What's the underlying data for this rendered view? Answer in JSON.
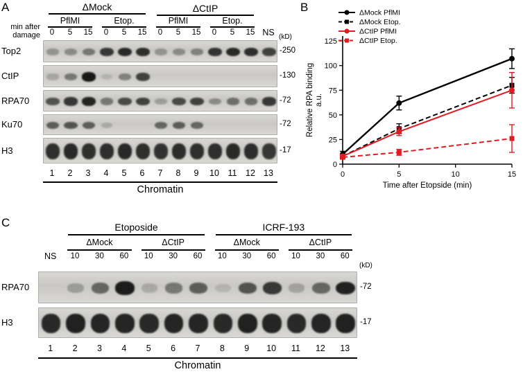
{
  "accent_colors": {
    "black": "#000000",
    "red": "#e11b22"
  },
  "panelA": {
    "label": "A",
    "row_axis_label_lines": [
      "min after",
      "damage"
    ],
    "kd_label": "(kD)",
    "groups": [
      {
        "label": "ΔMock",
        "from": 0,
        "to": 5
      },
      {
        "label": "ΔCtIP",
        "from": 6,
        "to": 11
      }
    ],
    "subgroups": [
      {
        "label": "PflMI",
        "from": 0,
        "to": 2
      },
      {
        "label": "Etop.",
        "from": 3,
        "to": 5
      },
      {
        "label": "PflMI",
        "from": 6,
        "to": 8
      },
      {
        "label": "Etop.",
        "from": 9,
        "to": 11
      }
    ],
    "lane_times": [
      "0",
      "5",
      "15",
      "0",
      "5",
      "15",
      "0",
      "5",
      "15",
      "0",
      "5",
      "15"
    ],
    "ns_label": "NS",
    "rows": [
      {
        "name": "Top2",
        "marker": "-250",
        "bands": [
          0.3,
          0.35,
          0.45,
          0.8,
          0.88,
          0.85,
          0.3,
          0.35,
          0.4,
          0.82,
          0.88,
          0.85,
          0.75
        ]
      },
      {
        "name": "CtIP",
        "marker": "-130",
        "bands": [
          0.2,
          0.45,
          0.97,
          0.12,
          0.4,
          0.75,
          0.04,
          0.04,
          0.03,
          0.03,
          0.04,
          0.03,
          0.03
        ]
      },
      {
        "name": "RPA70",
        "marker": "-72",
        "bands": [
          0.65,
          0.8,
          0.9,
          0.45,
          0.7,
          0.75,
          0.25,
          0.7,
          0.75,
          0.35,
          0.5,
          0.5,
          0.8
        ]
      },
      {
        "name": "Ku70",
        "marker": "-72",
        "bands": [
          0.6,
          0.65,
          0.6,
          0.18,
          0.04,
          0.03,
          0.55,
          0.6,
          0.55,
          0.03,
          0.03,
          0.03,
          0.03
        ]
      },
      {
        "name": "H3",
        "marker": "-17",
        "bands": [
          0.85,
          0.88,
          0.85,
          0.85,
          0.88,
          0.85,
          0.83,
          0.86,
          0.85,
          0.85,
          0.88,
          0.86,
          0.8
        ]
      }
    ],
    "lane_numbers": [
      "1",
      "2",
      "3",
      "4",
      "5",
      "6",
      "7",
      "8",
      "9",
      "10",
      "11",
      "12",
      "13"
    ],
    "bottom_label": "Chromatin"
  },
  "panelB": {
    "label": "B"
  },
  "chart_data": {
    "type": "line",
    "x": [
      0,
      5,
      15
    ],
    "series": [
      {
        "name": "ΔMock PflMI",
        "color": "#000000",
        "style": "solid",
        "marker": "circle",
        "values": [
          10,
          62,
          107
        ],
        "errors": [
          3,
          7,
          10
        ]
      },
      {
        "name": "ΔMock Etop.",
        "color": "#000000",
        "style": "dashed",
        "marker": "square",
        "values": [
          8,
          36,
          80
        ],
        "errors": [
          2,
          5,
          8
        ]
      },
      {
        "name": "ΔCtIP PflMI",
        "color": "#e11b22",
        "style": "solid",
        "marker": "circle",
        "values": [
          8,
          33,
          75
        ],
        "errors": [
          2,
          4,
          18
        ]
      },
      {
        "name": "ΔCtIP Etop.",
        "color": "#e11b22",
        "style": "dashed",
        "marker": "square",
        "values": [
          7,
          12,
          26
        ],
        "errors": [
          2,
          3,
          14
        ]
      }
    ],
    "title": "",
    "xlabel": "Time after Etopside (min)",
    "ylabel": "Relative RPA binding",
    "ylabel2": "a.u.",
    "xticks": [
      0,
      5,
      10,
      15
    ],
    "yticks": [
      0,
      25,
      50,
      75,
      100,
      125
    ],
    "xlim": [
      0,
      15
    ],
    "ylim": [
      0,
      130
    ],
    "grid": false,
    "legend_position": "top-left"
  },
  "panelC": {
    "label": "C",
    "kd_label": "(kD)",
    "groups": [
      {
        "label": "Etoposide",
        "from": 1,
        "to": 6
      },
      {
        "label": "ICRF-193",
        "from": 7,
        "to": 12
      }
    ],
    "subgroups": [
      {
        "label": "ΔMock",
        "from": 1,
        "to": 3
      },
      {
        "label": "ΔCtIP",
        "from": 4,
        "to": 6
      },
      {
        "label": "ΔMock",
        "from": 7,
        "to": 9
      },
      {
        "label": "ΔCtIP",
        "from": 10,
        "to": 12
      }
    ],
    "ns_label": "NS",
    "lane_times": [
      "10",
      "30",
      "60",
      "10",
      "30",
      "60",
      "10",
      "30",
      "60",
      "10",
      "30",
      "60"
    ],
    "rows": [
      {
        "name": "RPA70",
        "marker": "-72",
        "bands": [
          0.04,
          0.25,
          0.55,
          0.95,
          0.18,
          0.45,
          0.6,
          0.12,
          0.65,
          0.8,
          0.22,
          0.55,
          0.92
        ]
      },
      {
        "name": "H3",
        "marker": "-17",
        "bands": [
          0.88,
          0.92,
          0.9,
          0.9,
          0.88,
          0.9,
          0.9,
          0.88,
          0.92,
          0.9,
          0.88,
          0.9,
          0.92
        ]
      }
    ],
    "lane_numbers": [
      "1",
      "2",
      "3",
      "4",
      "5",
      "6",
      "7",
      "8",
      "9",
      "10",
      "11",
      "12",
      "13"
    ],
    "bottom_label": "Chromatin"
  }
}
